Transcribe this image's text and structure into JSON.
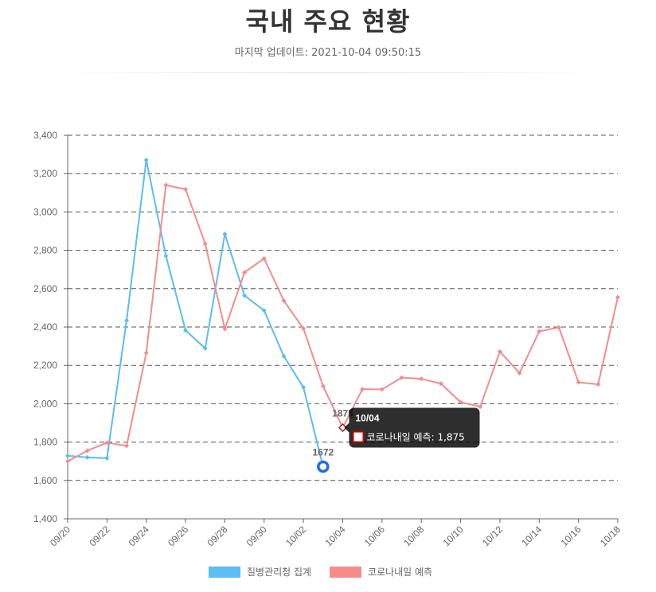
{
  "header": {
    "title": "국내 주요 현황",
    "updated": "마지막 업데이트: 2021-10-04 09:50:15"
  },
  "chart_data": {
    "type": "line",
    "categories": [
      "09/20",
      "09/21",
      "09/22",
      "09/23",
      "09/24",
      "09/25",
      "09/26",
      "09/27",
      "09/28",
      "09/29",
      "09/30",
      "10/01",
      "10/02",
      "10/03",
      "10/04",
      "10/05",
      "10/06",
      "10/07",
      "10/08",
      "10/09",
      "10/10",
      "10/11",
      "10/12",
      "10/13",
      "10/14",
      "10/15",
      "10/16",
      "10/17",
      "10/18"
    ],
    "tick_labels": [
      "09/20",
      "09/22",
      "09/24",
      "09/26",
      "09/28",
      "09/30",
      "10/02",
      "10/04",
      "10/06",
      "10/08",
      "10/10",
      "10/12",
      "10/14",
      "10/16",
      "10/18"
    ],
    "ylim": [
      1400,
      3400
    ],
    "yticks": [
      1400,
      1600,
      1800,
      2000,
      2200,
      2400,
      2600,
      2800,
      3000,
      3200,
      3400
    ],
    "ytick_labels": [
      "1,400",
      "1,600",
      "1,800",
      "2,000",
      "2,200",
      "2,400",
      "2,600",
      "2,800",
      "3,000",
      "3,200",
      "3,400"
    ],
    "grid": true,
    "legend_position": "bottom",
    "series": [
      {
        "name": "질병관리청 집계",
        "color": "#5bbdf2",
        "values": [
          1729,
          1720,
          1716,
          2434,
          3271,
          2771,
          2383,
          2289,
          2885,
          2564,
          2486,
          2248,
          2085,
          1672,
          null,
          null,
          null,
          null,
          null,
          null,
          null,
          null,
          null,
          null,
          null,
          null,
          null,
          null,
          null
        ]
      },
      {
        "name": "코로나내일 예측",
        "color": "#f48c8c",
        "values": [
          1700,
          1755,
          1797,
          1780,
          2265,
          3140,
          3118,
          2834,
          2390,
          2685,
          2757,
          2538,
          2392,
          2092,
          1875,
          2076,
          2075,
          2136,
          2130,
          2105,
          2008,
          1985,
          2272,
          2160,
          2377,
          2398,
          2112,
          2101,
          2555
        ]
      }
    ],
    "data_labels": [
      {
        "series": 0,
        "index": 13,
        "text": "1672"
      },
      {
        "series": 1,
        "index": 14,
        "text": "1875"
      }
    ],
    "highlight": {
      "series": 0,
      "index": 13,
      "color": "#1a6ee8"
    },
    "tooltip": {
      "series": 1,
      "index": 14,
      "title": "10/04",
      "body": "코로나내일 예측: 1,875"
    }
  }
}
